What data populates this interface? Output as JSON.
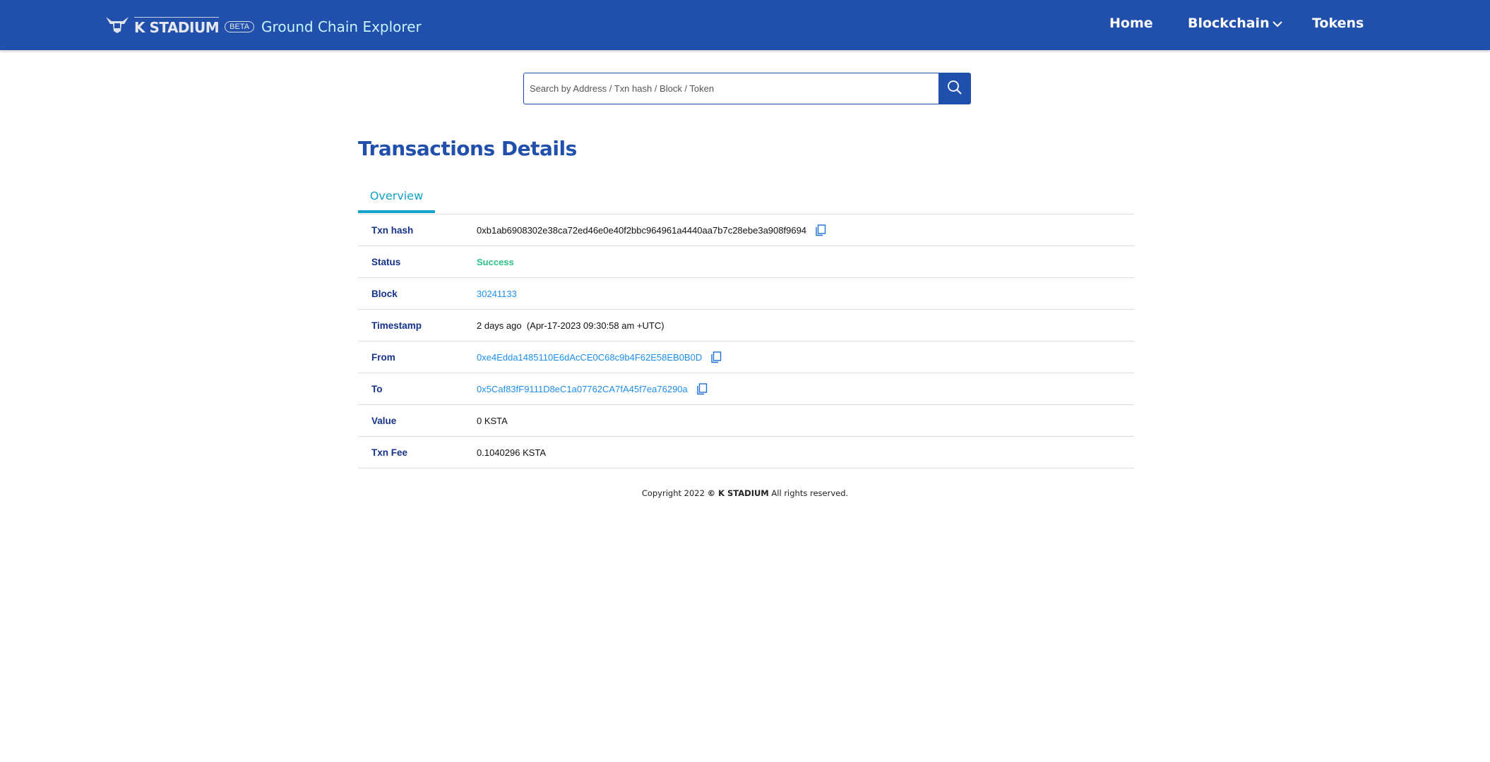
{
  "header": {
    "brand": "K STADIUM",
    "badge": "BETA",
    "app_name": "Ground Chain Explorer",
    "nav": [
      {
        "label": "Home"
      },
      {
        "label": "Blockchain"
      },
      {
        "label": "Tokens"
      }
    ]
  },
  "search": {
    "placeholder": "Search by Address / Txn hash / Block / Token",
    "value": ""
  },
  "page_title": "Transactions Details",
  "tabs": [
    {
      "label": "Overview",
      "active": true
    }
  ],
  "details": [
    {
      "label": "Txn hash",
      "value": "0xb1ab6908302e38ca72ed46e0e40f2bbc964961a4440aa7b7c28ebe3a908f9694"
    },
    {
      "label": "Status",
      "value": "Success"
    },
    {
      "label": "Block",
      "value": "30241133"
    },
    {
      "label": "Timestamp",
      "value": "2 days ago  (Apr-17-2023 09:30:58 am +UTC)"
    },
    {
      "label": "From",
      "value": "0xe4Edda1485110E6dAcCE0C68c9b4F62E58EB0B0D"
    },
    {
      "label": "To",
      "value": "0x5Caf83fF9111D8eC1a07762CA7fA45f7ea76290a"
    },
    {
      "label": "Value",
      "value": "0 KSTA"
    },
    {
      "label": "Txn Fee",
      "value": "0.1040296 KSTA"
    }
  ],
  "footer": {
    "prefix": "Copyright 2022 ",
    "brand": "© K STADIUM",
    "suffix": " All rights reserved."
  },
  "colors": {
    "primary": "#2150ac",
    "tab": "#13a2c8",
    "link": "#1e8ef0",
    "success": "#2ec089"
  }
}
